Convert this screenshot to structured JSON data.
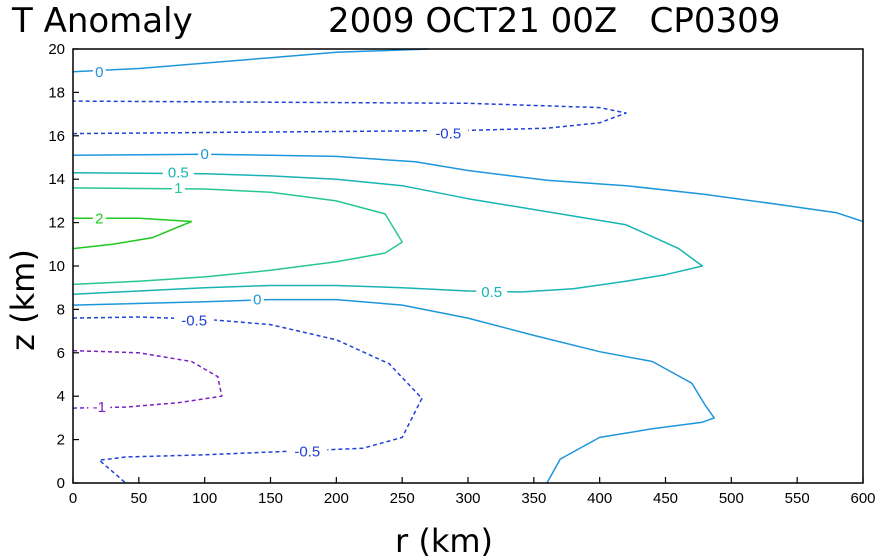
{
  "chart_data": {
    "type": "contour",
    "title_left": "T Anomaly",
    "title_right": "2009 OCT21 00Z   CP0309",
    "xlabel": "r (km)",
    "ylabel": "z (km)",
    "xlim": [
      0,
      600
    ],
    "ylim": [
      0,
      20
    ],
    "xticks": [
      "0",
      "50",
      "100",
      "150",
      "200",
      "250",
      "300",
      "350",
      "400",
      "450",
      "500",
      "550",
      "600"
    ],
    "yticks": [
      "0",
      "2",
      "4",
      "6",
      "8",
      "10",
      "12",
      "14",
      "16",
      "18",
      "20"
    ],
    "contours": [
      {
        "id": "c0_top",
        "level": "0",
        "color": "#1e96dc",
        "dashed": false,
        "points": [
          [
            0,
            18.95
          ],
          [
            50,
            19.1
          ],
          [
            100,
            19.35
          ],
          [
            150,
            19.6
          ],
          [
            200,
            19.85
          ],
          [
            270,
            20
          ]
        ],
        "label": {
          "text": "0",
          "x": 20,
          "y": 18.95
        }
      },
      {
        "id": "cm05_upper",
        "level": "-0.5",
        "color": "#2040d8",
        "dashed": true,
        "points": [
          [
            0,
            16.1
          ],
          [
            100,
            16.15
          ],
          [
            200,
            16.2
          ],
          [
            300,
            16.25
          ],
          [
            360,
            16.35
          ],
          [
            400,
            16.6
          ],
          [
            420,
            17.05
          ],
          [
            400,
            17.3
          ],
          [
            300,
            17.5
          ],
          [
            150,
            17.55
          ],
          [
            0,
            17.6
          ]
        ],
        "label": {
          "text": "-0.5",
          "x": 285,
          "y": 16.1
        }
      },
      {
        "id": "c0_mid",
        "level": "0",
        "color": "#1e96dc",
        "dashed": false,
        "points": [
          [
            0,
            15.1
          ],
          [
            100,
            15.15
          ],
          [
            200,
            15.05
          ],
          [
            260,
            14.8
          ],
          [
            300,
            14.4
          ],
          [
            360,
            13.95
          ],
          [
            420,
            13.7
          ],
          [
            480,
            13.3
          ],
          [
            540,
            12.8
          ],
          [
            580,
            12.45
          ],
          [
            600,
            12.05
          ]
        ],
        "label": {
          "text": "0",
          "x": 100,
          "y": 15.15
        }
      },
      {
        "id": "c05_main",
        "level": "0.5",
        "color": "#18b4b4",
        "dashed": false,
        "points": [
          [
            0,
            14.3
          ],
          [
            100,
            14.25
          ],
          [
            150,
            14.15
          ],
          [
            200,
            14.0
          ],
          [
            250,
            13.7
          ],
          [
            300,
            13.1
          ],
          [
            370,
            12.4
          ],
          [
            420,
            11.9
          ],
          [
            460,
            10.8
          ],
          [
            478,
            10.0
          ],
          [
            450,
            9.6
          ],
          [
            420,
            9.3
          ],
          [
            380,
            8.95
          ],
          [
            340,
            8.8
          ],
          [
            300,
            8.85
          ],
          [
            250,
            9.0
          ],
          [
            200,
            9.1
          ],
          [
            150,
            9.1
          ],
          [
            100,
            9.0
          ],
          [
            50,
            8.85
          ],
          [
            0,
            8.7
          ]
        ],
        "label": {
          "text": "0.5",
          "x": 80,
          "y": 14.3
        },
        "label2": {
          "text": "0.5",
          "x": 318,
          "y": 8.8
        }
      },
      {
        "id": "c1",
        "level": "1",
        "color": "#28c88c",
        "dashed": false,
        "points": [
          [
            0,
            13.6
          ],
          [
            100,
            13.55
          ],
          [
            150,
            13.4
          ],
          [
            200,
            13.0
          ],
          [
            237,
            12.4
          ],
          [
            250,
            11.1
          ],
          [
            237,
            10.6
          ],
          [
            200,
            10.2
          ],
          [
            150,
            9.8
          ],
          [
            100,
            9.5
          ],
          [
            50,
            9.3
          ],
          [
            0,
            9.15
          ]
        ],
        "label": {
          "text": "1",
          "x": 80,
          "y": 13.6
        }
      },
      {
        "id": "c2",
        "level": "2",
        "color": "#20c820",
        "dashed": false,
        "points": [
          [
            0,
            12.2
          ],
          [
            50,
            12.2
          ],
          [
            90,
            12.05
          ],
          [
            60,
            11.3
          ],
          [
            30,
            11.0
          ],
          [
            0,
            10.8
          ]
        ],
        "label": {
          "text": "2",
          "x": 20,
          "y": 12.2
        }
      },
      {
        "id": "c0_low",
        "level": "0",
        "color": "#1e96dc",
        "dashed": false,
        "points": [
          [
            0,
            8.2
          ],
          [
            100,
            8.35
          ],
          [
            150,
            8.45
          ],
          [
            200,
            8.45
          ],
          [
            250,
            8.2
          ],
          [
            300,
            7.6
          ],
          [
            350,
            6.8
          ],
          [
            400,
            6.05
          ],
          [
            440,
            5.6
          ],
          [
            470,
            4.6
          ],
          [
            480,
            3.6
          ],
          [
            487,
            3.0
          ],
          [
            478,
            2.8
          ],
          [
            440,
            2.5
          ],
          [
            400,
            2.1
          ],
          [
            370,
            1.1
          ],
          [
            360,
            0
          ]
        ],
        "label": {
          "text": "0",
          "x": 140,
          "y": 8.45
        }
      },
      {
        "id": "cm05_low",
        "level": "-0.5",
        "color": "#2040d8",
        "dashed": true,
        "points": [
          [
            0,
            7.6
          ],
          [
            50,
            7.65
          ],
          [
            100,
            7.55
          ],
          [
            150,
            7.3
          ],
          [
            200,
            6.6
          ],
          [
            240,
            5.5
          ],
          [
            265,
            3.9
          ],
          [
            250,
            2.1
          ],
          [
            220,
            1.6
          ],
          [
            160,
            1.45
          ],
          [
            100,
            1.3
          ],
          [
            40,
            1.2
          ],
          [
            20,
            1.05
          ],
          [
            40,
            0
          ]
        ],
        "label": {
          "text": "-0.5",
          "x": 92,
          "y": 7.5
        },
        "label2": {
          "text": "-0.5",
          "x": 178,
          "y": 1.45
        }
      },
      {
        "id": "cm1",
        "level": "-1",
        "color": "#7820c8",
        "dashed": true,
        "points": [
          [
            0,
            6.1
          ],
          [
            50,
            6.0
          ],
          [
            90,
            5.6
          ],
          [
            110,
            4.9
          ],
          [
            113,
            4.0
          ],
          [
            80,
            3.7
          ],
          [
            40,
            3.5
          ],
          [
            0,
            3.45
          ]
        ],
        "label": {
          "text": "-1",
          "x": 20,
          "y": 3.5
        }
      }
    ]
  }
}
